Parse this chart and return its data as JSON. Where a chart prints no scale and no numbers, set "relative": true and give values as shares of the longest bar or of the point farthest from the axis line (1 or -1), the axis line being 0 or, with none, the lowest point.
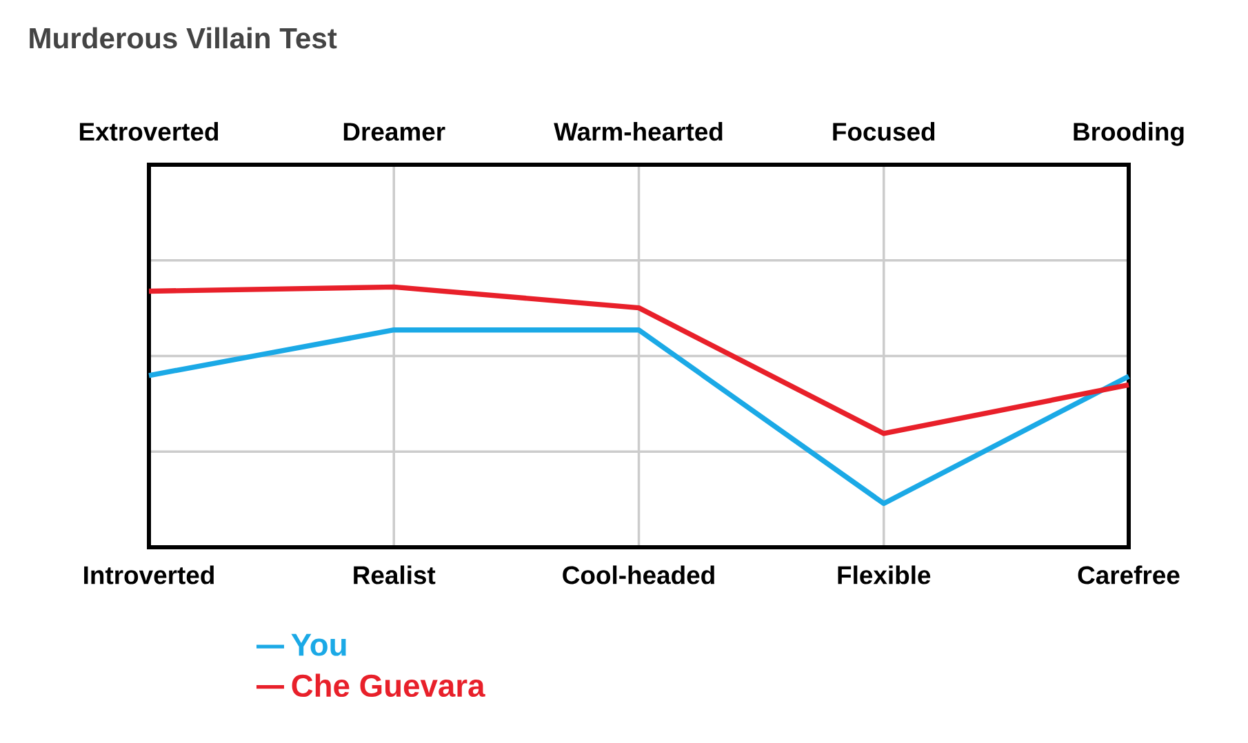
{
  "chart_data": {
    "type": "line",
    "title": "Murderous Villain Test",
    "categories": [
      "Introverted",
      "Realist",
      "Cool-headed",
      "Flexible",
      "Carefree"
    ],
    "annotations": [
      "Extroverted",
      "Dreamer",
      "Warm-hearted",
      "Focused",
      "Brooding"
    ],
    "relative": true,
    "grid": true,
    "legend": "bottom",
    "series": [
      {
        "name": "You",
        "color": "#1ba9e6",
        "values": [
          0.66,
          0.835,
          0.835,
          0.168,
          0.657
        ]
      },
      {
        "name": "Che Guevara",
        "color": "#e8202a",
        "values": [
          0.984,
          1.0,
          0.92,
          0.437,
          0.624
        ]
      }
    ]
  }
}
